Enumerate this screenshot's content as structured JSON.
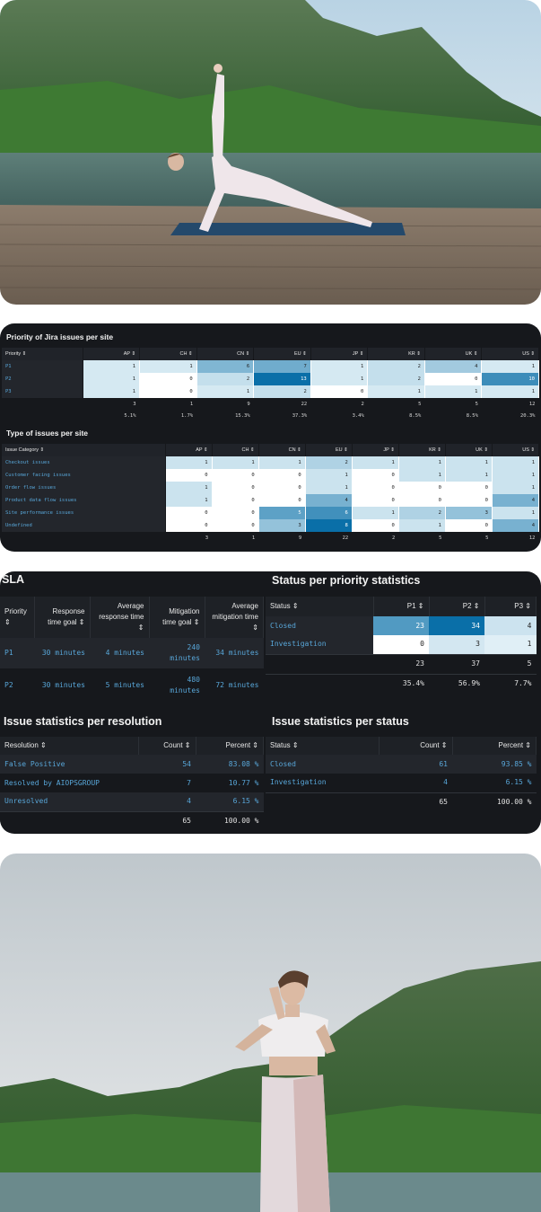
{
  "priority_table": {
    "title": "Priority of Jira issues per site",
    "header_first": "Priority ⇕",
    "columns": [
      "AP ⇕",
      "CH ⇕",
      "CN ⇕",
      "EU ⇕",
      "JP ⇕",
      "KR ⇕",
      "UK ⇕",
      "US ⇕"
    ],
    "rows": [
      {
        "label": "P1",
        "values": [
          "1",
          "1",
          "6",
          "7",
          "1",
          "2",
          "4",
          "1"
        ]
      },
      {
        "label": "P2",
        "values": [
          "1",
          "0",
          "2",
          "13",
          "1",
          "2",
          "0",
          "10"
        ]
      },
      {
        "label": "P3",
        "values": [
          "1",
          "0",
          "1",
          "2",
          "0",
          "1",
          "1",
          "1"
        ]
      }
    ],
    "totals": [
      "3",
      "1",
      "9",
      "22",
      "2",
      "5",
      "5",
      "12"
    ],
    "percents": [
      "5.1%",
      "1.7%",
      "15.3%",
      "37.3%",
      "3.4%",
      "8.5%",
      "8.5%",
      "20.3%"
    ]
  },
  "type_table": {
    "title": "Type of issues per site",
    "header_first": "Issue Category ⇕",
    "columns": [
      "AP ⇕",
      "CH ⇕",
      "CN ⇕",
      "EU ⇕",
      "JP ⇕",
      "KR ⇕",
      "UK ⇕",
      "US ⇕"
    ],
    "rows": [
      {
        "label": "Checkout issues",
        "values": [
          "1",
          "1",
          "1",
          "2",
          "1",
          "1",
          "1",
          "1"
        ]
      },
      {
        "label": "Customer facing issues",
        "values": [
          "0",
          "0",
          "0",
          "1",
          "0",
          "1",
          "1",
          "1"
        ]
      },
      {
        "label": "Order flow issues",
        "values": [
          "1",
          "0",
          "0",
          "1",
          "0",
          "0",
          "0",
          "1"
        ]
      },
      {
        "label": "Product data flow issues",
        "values": [
          "1",
          "0",
          "0",
          "4",
          "0",
          "0",
          "0",
          "4"
        ]
      },
      {
        "label": "Site performance issues",
        "values": [
          "0",
          "0",
          "5",
          "6",
          "1",
          "2",
          "3",
          "1"
        ]
      },
      {
        "label": "Undefined",
        "values": [
          "0",
          "0",
          "3",
          "8",
          "0",
          "1",
          "0",
          "4"
        ]
      }
    ],
    "totals": [
      "3",
      "1",
      "9",
      "22",
      "2",
      "5",
      "5",
      "12"
    ]
  },
  "sla": {
    "title": "SLA",
    "headers": [
      "Priority ⇕",
      "Response time goal ⇕",
      "Average response time ⇕",
      "Mitigation time goal ⇕",
      "Average mitigation time ⇕"
    ],
    "rows": [
      {
        "priority": "P1",
        "response_goal": "30 minutes",
        "avg_response": "4 minutes",
        "mitigation_goal": "240 minutes",
        "avg_mitigation": "34 minutes"
      },
      {
        "priority": "P2",
        "response_goal": "30 minutes",
        "avg_response": "5 minutes",
        "mitigation_goal": "480 minutes",
        "avg_mitigation": "72 minutes"
      }
    ]
  },
  "status_priority": {
    "title": "Status per priority statistics",
    "headers": [
      "Status ⇕",
      "P1 ⇕",
      "P2 ⇕",
      "P3 ⇕"
    ],
    "rows": [
      {
        "label": "Closed",
        "values": [
          "23",
          "34",
          "4"
        ]
      },
      {
        "label": "Investigation",
        "values": [
          "0",
          "3",
          "1"
        ]
      }
    ],
    "totals": [
      "23",
      "37",
      "5"
    ],
    "percents": [
      "35.4%",
      "56.9%",
      "7.7%"
    ]
  },
  "resolution": {
    "title": "Issue statistics per resolution",
    "headers": [
      "Resolution ⇕",
      "Count ⇕",
      "Percent ⇕"
    ],
    "rows": [
      {
        "label": "False Positive",
        "count": "54",
        "percent": "83.08 %"
      },
      {
        "label": "Resolved by AIOPSGROUP",
        "count": "7",
        "percent": "10.77 %"
      },
      {
        "label": "Unresolved",
        "count": "4",
        "percent": "6.15 %"
      }
    ],
    "total_count": "65",
    "total_percent": "100.00 %"
  },
  "status_stats": {
    "title": "Issue statistics per status",
    "headers": [
      "Status ⇕",
      "Count ⇕",
      "Percent ⇕"
    ],
    "rows": [
      {
        "label": "Closed",
        "count": "61",
        "percent": "93.85 %"
      },
      {
        "label": "Investigation",
        "count": "4",
        "percent": "6.15 %"
      }
    ],
    "total_count": "65",
    "total_percent": "100.00 %"
  },
  "colors": {
    "panel_bg": "#16181c",
    "link_blue": "#58a6d8",
    "heat_max": "#0a6fa8",
    "heat_min": "#e6f3f8"
  }
}
